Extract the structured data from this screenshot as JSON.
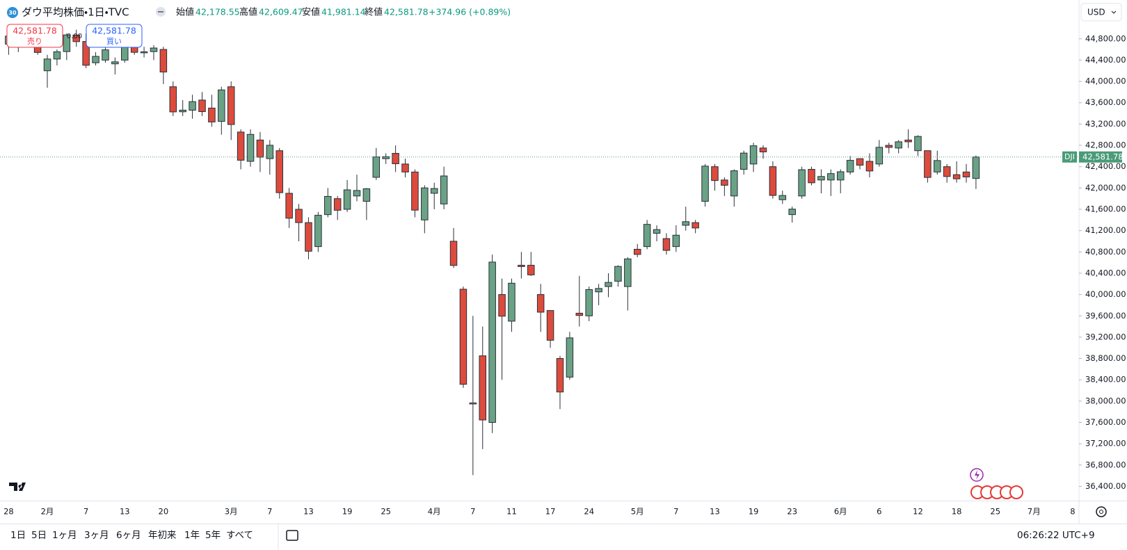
{
  "header": {
    "badge": "30",
    "title": "ダウ平均株価・1日・TVC",
    "ohlc": [
      {
        "label": "始値",
        "value": "42,178.55"
      },
      {
        "label": "高値",
        "value": "42,609.47"
      },
      {
        "label": "安値",
        "value": "41,981.14"
      },
      {
        "label": "終値",
        "value": "42,581.78"
      }
    ],
    "change": "+374.96 (+0.89%)",
    "currency": "USD"
  },
  "trade": {
    "sell": {
      "price": "42,581.78",
      "label": "売り"
    },
    "spread": "0.00",
    "buy": {
      "price": "42,581.78",
      "label": "買い"
    }
  },
  "toolbar": {
    "ranges": [
      "1日",
      "5日",
      "1ヶ月",
      "3ヶ月",
      "6ヶ月",
      "年初来",
      "1年",
      "5年",
      "すべて"
    ],
    "clock": "06:26:22 UTC+9"
  },
  "chart_data": {
    "type": "candlestick",
    "symbol": "DJI",
    "last_price_label": "42,581.78",
    "up_color": "#6aa285",
    "down_color": "#dd4b3c",
    "grid": false,
    "categories": [
      "28",
      null,
      null,
      null,
      "2月",
      null,
      null,
      null,
      "7",
      null,
      null,
      null,
      "13",
      null,
      null,
      null,
      "20",
      null,
      null,
      null,
      null,
      null,
      null,
      "3月",
      null,
      null,
      null,
      "7",
      null,
      null,
      null,
      "13",
      null,
      null,
      null,
      "19",
      null,
      null,
      null,
      "25",
      null,
      null,
      null,
      null,
      "4月",
      null,
      null,
      null,
      "7",
      null,
      null,
      null,
      "11",
      null,
      null,
      null,
      "17",
      null,
      null,
      null,
      "24",
      null,
      null,
      null,
      null,
      "5月",
      null,
      null,
      null,
      "7",
      null,
      null,
      null,
      "13",
      null,
      null,
      null,
      "19",
      null,
      null,
      null,
      "23",
      null,
      null,
      null,
      null,
      "6月",
      null,
      null,
      null,
      "6",
      null,
      null,
      null,
      "12",
      null,
      null,
      null,
      "18",
      null,
      null,
      null,
      "25",
      null,
      null,
      null,
      "7月",
      null,
      null,
      null,
      "8"
    ],
    "open": [
      44700,
      44850,
      44750,
      44900,
      44200,
      44420,
      44560,
      44870,
      44750,
      44350,
      44400,
      44330,
      44400,
      44700,
      44550,
      44560,
      44600,
      43900,
      43430,
      43460,
      43650,
      43500,
      43250,
      43900,
      43050,
      42500,
      42900,
      42550,
      42700,
      41900,
      41600,
      41350,
      40900,
      41500,
      41800,
      41600,
      41850,
      41750,
      42200,
      42550,
      42650,
      42450,
      42300,
      41400,
      41900,
      41700,
      41000,
      40100,
      37950,
      38850,
      37600,
      40000,
      39500,
      40550,
      40550,
      40000,
      39700,
      38800,
      38450,
      39650,
      39600,
      40050,
      40150,
      40250,
      40150,
      40850,
      40900,
      41150,
      41050,
      40900,
      41300,
      41350,
      41750,
      42400,
      42150,
      41850,
      42350,
      42450,
      42750,
      42400,
      41780,
      41500,
      41850,
      42350,
      42150,
      42150,
      42150,
      42300,
      42550,
      42500,
      42450,
      42800,
      42750,
      42900,
      42700,
      42700,
      42300,
      42400,
      42250,
      42300,
      42178.55,
      null,
      null,
      null,
      null,
      null,
      null,
      null,
      null,
      null,
      null
    ],
    "high": [
      44900,
      44900,
      44950,
      45050,
      44500,
      44600,
      44900,
      44970,
      44900,
      44550,
      44650,
      44450,
      44750,
      44760,
      44650,
      44680,
      44650,
      44000,
      43650,
      43750,
      43800,
      43750,
      43900,
      44000,
      43100,
      43100,
      43050,
      42900,
      42750,
      42000,
      41700,
      41450,
      41550,
      42000,
      41850,
      42150,
      42250,
      42000,
      42750,
      42650,
      42800,
      42550,
      42350,
      42050,
      42100,
      42400,
      41250,
      40150,
      39600,
      39400,
      40750,
      40300,
      40300,
      40800,
      40800,
      40200,
      39700,
      38850,
      39300,
      40350,
      40150,
      40200,
      40400,
      40550,
      40700,
      40950,
      41400,
      41300,
      41150,
      41300,
      41650,
      41400,
      42450,
      42450,
      42200,
      42350,
      42700,
      42850,
      42800,
      42500,
      41950,
      41650,
      42400,
      42400,
      42350,
      42350,
      42350,
      42600,
      42550,
      42650,
      42900,
      42850,
      42900,
      43100,
      42990,
      42700,
      42700,
      42450,
      42500,
      42450,
      42609.47,
      null,
      null,
      null,
      null,
      null,
      null,
      null,
      null,
      null,
      null
    ],
    "low": [
      44500,
      44550,
      44650,
      44500,
      43880,
      44300,
      44400,
      44650,
      44250,
      44300,
      44350,
      44130,
      44350,
      44500,
      44450,
      44400,
      43950,
      43350,
      43350,
      43300,
      43350,
      43150,
      43000,
      42900,
      42350,
      42400,
      42300,
      42250,
      41800,
      41250,
      41000,
      40660,
      40800,
      41450,
      41400,
      41550,
      41750,
      41400,
      42150,
      42450,
      42300,
      42200,
      41450,
      41150,
      41600,
      41600,
      40500,
      38250,
      36612,
      37100,
      37400,
      38400,
      39300,
      40300,
      40350,
      39300,
      39000,
      37850,
      38400,
      39400,
      39500,
      39800,
      39950,
      40150,
      39700,
      40700,
      40850,
      41000,
      40750,
      40800,
      41200,
      41150,
      41650,
      41950,
      41850,
      41650,
      42250,
      42300,
      42550,
      41800,
      41700,
      41350,
      41800,
      42050,
      41900,
      41850,
      41900,
      42250,
      42350,
      42200,
      42400,
      42650,
      42650,
      42750,
      42600,
      42100,
      42250,
      42100,
      42100,
      42100,
      41981.14,
      null,
      null,
      null,
      null,
      null,
      null,
      null,
      null,
      null,
      null
    ],
    "close": [
      44850,
      44713,
      44882,
      44544,
      44421,
      44556,
      44873,
      44747,
      44303,
      44470,
      44593,
      44368,
      44711,
      44546,
      44556,
      44627,
      44176,
      43428,
      43461,
      43621,
      43433,
      43239,
      43841,
      43191,
      42521,
      43006,
      42579,
      42802,
      41912,
      41433,
      41350,
      40813,
      41488,
      41842,
      41582,
      41965,
      41953,
      41985,
      42583,
      42588,
      42455,
      42300,
      41584,
      42002,
      41990,
      42226,
      40546,
      38315,
      37966,
      37646,
      40609,
      39594,
      40213,
      40525,
      40369,
      39669,
      39142,
      38171,
      39187,
      39607,
      40094,
      40114,
      40228,
      40528,
      40669,
      40753,
      41317,
      41219,
      40829,
      41114,
      41368,
      41249,
      42410,
      42140,
      42051,
      42323,
      42655,
      42792,
      42677,
      41860,
      41859,
      41603,
      42343,
      42098,
      42216,
      42270,
      42305,
      42519,
      42428,
      42319,
      42763,
      42762,
      42867,
      42866,
      42968,
      42198,
      42515,
      42215,
      42172,
      42207,
      42581.78,
      null,
      null,
      null,
      null,
      null,
      null,
      null,
      null,
      null,
      null
    ],
    "ylim": [
      36132,
      45528
    ],
    "yticks": [
      {
        "value": 36400,
        "label": "36,400.00"
      },
      {
        "value": 36800,
        "label": "36,800.00"
      },
      {
        "value": 37200,
        "label": "37,200.00"
      },
      {
        "value": 37600,
        "label": "37,600.00"
      },
      {
        "value": 38000,
        "label": "38,000.00"
      },
      {
        "value": 38400,
        "label": "38,400.00"
      },
      {
        "value": 38800,
        "label": "38,800.00"
      },
      {
        "value": 39200,
        "label": "39,200.00"
      },
      {
        "value": 39600,
        "label": "39,600.00"
      },
      {
        "value": 40000,
        "label": "40,000.00"
      },
      {
        "value": 40400,
        "label": "40,400.00"
      },
      {
        "value": 40800,
        "label": "40,800.00"
      },
      {
        "value": 41200,
        "label": "41,200.00"
      },
      {
        "value": 41600,
        "label": "41,600.00"
      },
      {
        "value": 42000,
        "label": "42,000.00"
      },
      {
        "value": 42400,
        "label": "42,400.00"
      },
      {
        "value": 42800,
        "label": "42,800.00"
      },
      {
        "value": 43200,
        "label": "43,200.00"
      },
      {
        "value": 43600,
        "label": "43,600.00"
      },
      {
        "value": 44000,
        "label": "44,000.00"
      },
      {
        "value": 44400,
        "label": "44,400.00"
      },
      {
        "value": 44800,
        "label": "44,800.00"
      }
    ]
  }
}
